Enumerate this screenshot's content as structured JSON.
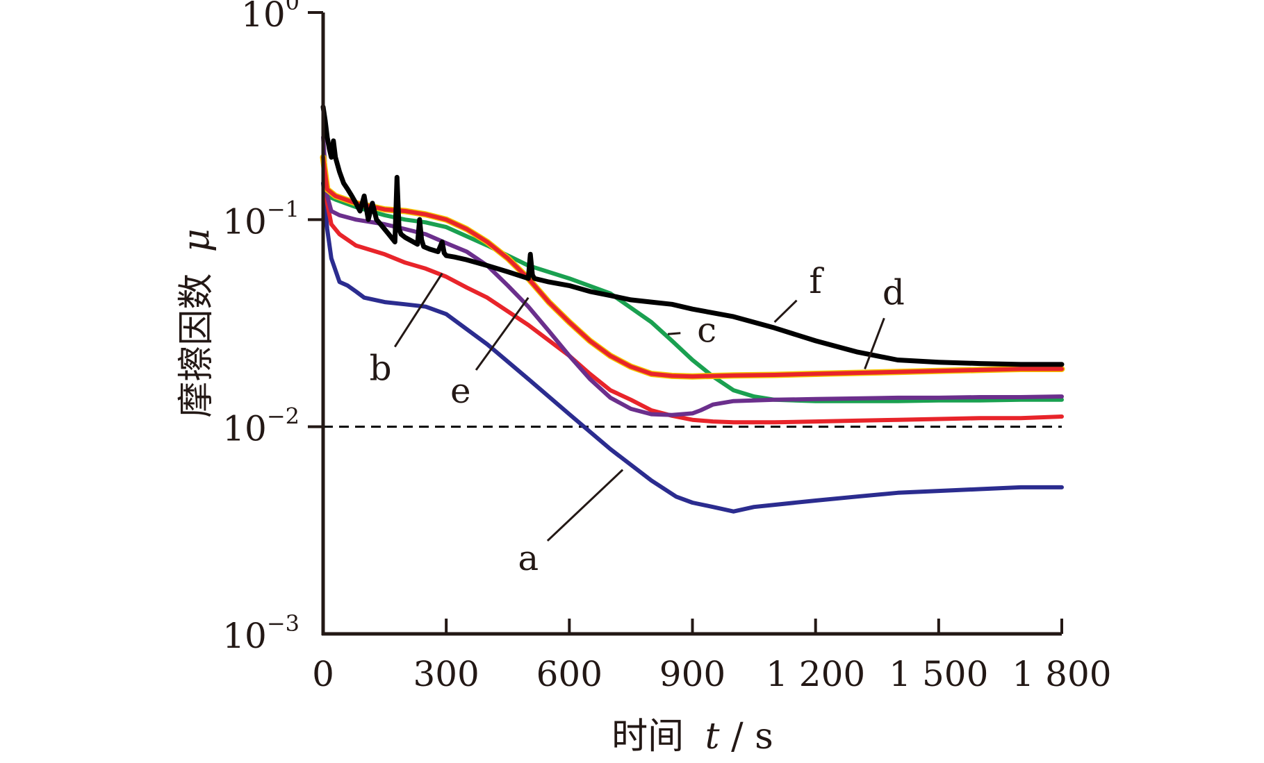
{
  "chart_data": {
    "type": "line",
    "title": "",
    "xlabel_text": "时间",
    "xlabel_symbol": "t",
    "xlabel_unit": "s",
    "ylabel_text": "摩擦因数",
    "ylabel_symbol": "μ",
    "xlim": [
      0,
      1800
    ],
    "ylim": [
      0.001,
      1
    ],
    "y_scale": "log",
    "grid": false,
    "x_ticks": [
      {
        "value": 0,
        "label": "0"
      },
      {
        "value": 300,
        "label": "300"
      },
      {
        "value": 600,
        "label": "600"
      },
      {
        "value": 900,
        "label": "900"
      },
      {
        "value": 1200,
        "label": "1 200"
      },
      {
        "value": 1500,
        "label": "1 500"
      },
      {
        "value": 1800,
        "label": "1 800"
      }
    ],
    "y_ticks": [
      {
        "value": 1,
        "base": "10",
        "exp": "0"
      },
      {
        "value": 0.1,
        "base": "10",
        "exp": "−1"
      },
      {
        "value": 0.01,
        "base": "10",
        "exp": "−2"
      },
      {
        "value": 0.001,
        "base": "10",
        "exp": "−3"
      }
    ],
    "reference_line": {
      "y": 0.01,
      "style": "dashed",
      "color": "#000000"
    },
    "series": [
      {
        "name": "a",
        "color": "#2b2c8f",
        "x": [
          0,
          10,
          20,
          40,
          60,
          80,
          100,
          150,
          200,
          250,
          300,
          400,
          500,
          600,
          700,
          800,
          860,
          900,
          950,
          1000,
          1050,
          1100,
          1200,
          1300,
          1400,
          1500,
          1600,
          1700,
          1800
        ],
        "y": [
          0.15,
          0.09,
          0.065,
          0.05,
          0.048,
          0.045,
          0.042,
          0.04,
          0.039,
          0.038,
          0.035,
          0.025,
          0.017,
          0.0115,
          0.0078,
          0.0055,
          0.0046,
          0.0043,
          0.0041,
          0.0039,
          0.0041,
          0.0042,
          0.0044,
          0.0046,
          0.0048,
          0.0049,
          0.005,
          0.0051,
          0.0051
        ]
      },
      {
        "name": "b",
        "color": "#e8242a",
        "x": [
          0,
          10,
          20,
          40,
          80,
          150,
          200,
          250,
          300,
          350,
          400,
          500,
          600,
          650,
          700,
          750,
          800,
          850,
          900,
          950,
          1000,
          1100,
          1200,
          1300,
          1400,
          1500,
          1600,
          1700,
          1800
        ],
        "y": [
          0.2,
          0.12,
          0.095,
          0.085,
          0.075,
          0.068,
          0.062,
          0.058,
          0.053,
          0.047,
          0.042,
          0.031,
          0.022,
          0.018,
          0.015,
          0.0135,
          0.012,
          0.0113,
          0.0108,
          0.0106,
          0.0105,
          0.0105,
          0.0106,
          0.0107,
          0.0108,
          0.0109,
          0.011,
          0.011,
          0.0112
        ]
      },
      {
        "name": "c",
        "color": "#1aa050",
        "x": [
          0,
          10,
          30,
          80,
          150,
          200,
          250,
          300,
          400,
          500,
          600,
          700,
          800,
          850,
          900,
          950,
          1000,
          1050,
          1100,
          1200,
          1300,
          1400,
          1500,
          1600,
          1700,
          1800
        ],
        "y": [
          0.15,
          0.13,
          0.125,
          0.115,
          0.105,
          0.1,
          0.097,
          0.092,
          0.075,
          0.06,
          0.052,
          0.044,
          0.032,
          0.026,
          0.021,
          0.0175,
          0.015,
          0.014,
          0.0135,
          0.0133,
          0.0133,
          0.0133,
          0.0134,
          0.0134,
          0.0135,
          0.0135
        ]
      },
      {
        "name": "d",
        "color": "#e8242a",
        "outline": "#f5c400",
        "x": [
          0,
          10,
          30,
          80,
          150,
          200,
          250,
          300,
          350,
          400,
          450,
          500,
          550,
          600,
          650,
          700,
          750,
          800,
          850,
          900,
          1000,
          1100,
          1200,
          1300,
          1400,
          1500,
          1600,
          1700,
          1800
        ],
        "y": [
          0.2,
          0.14,
          0.13,
          0.12,
          0.112,
          0.11,
          0.106,
          0.1,
          0.09,
          0.078,
          0.065,
          0.052,
          0.04,
          0.032,
          0.026,
          0.022,
          0.0195,
          0.018,
          0.0176,
          0.0175,
          0.0177,
          0.0178,
          0.018,
          0.0182,
          0.0184,
          0.0186,
          0.0188,
          0.019,
          0.019
        ]
      },
      {
        "name": "e",
        "color": "#6b2f8c",
        "x": [
          0,
          10,
          20,
          40,
          80,
          150,
          200,
          250,
          300,
          350,
          400,
          450,
          500,
          550,
          600,
          650,
          700,
          750,
          800,
          850,
          900,
          920,
          950,
          1000,
          1100,
          1200,
          1300,
          1400,
          1500,
          1600,
          1700,
          1800
        ],
        "y": [
          0.25,
          0.13,
          0.11,
          0.105,
          0.1,
          0.095,
          0.09,
          0.085,
          0.077,
          0.07,
          0.06,
          0.048,
          0.038,
          0.029,
          0.022,
          0.017,
          0.0138,
          0.0122,
          0.0115,
          0.0114,
          0.0116,
          0.012,
          0.0128,
          0.0133,
          0.0135,
          0.0136,
          0.0137,
          0.0138,
          0.0138,
          0.0139,
          0.0139,
          0.014
        ]
      },
      {
        "name": "f",
        "color": "#000000",
        "x": [
          0,
          5,
          10,
          15,
          20,
          25,
          30,
          40,
          50,
          60,
          70,
          80,
          90,
          100,
          110,
          120,
          130,
          140,
          160,
          175,
          180,
          185,
          190,
          200,
          220,
          230,
          235,
          240,
          245,
          260,
          280,
          290,
          295,
          300,
          320,
          350,
          400,
          450,
          500,
          505,
          510,
          515,
          550,
          600,
          650,
          700,
          750,
          800,
          850,
          900,
          1000,
          1100,
          1200,
          1300,
          1400,
          1500,
          1600,
          1700,
          1800
        ],
        "y": [
          0.35,
          0.3,
          0.25,
          0.22,
          0.2,
          0.24,
          0.2,
          0.17,
          0.15,
          0.14,
          0.13,
          0.12,
          0.11,
          0.13,
          0.1,
          0.12,
          0.1,
          0.095,
          0.085,
          0.078,
          0.16,
          0.09,
          0.085,
          0.082,
          0.078,
          0.076,
          0.1,
          0.08,
          0.074,
          0.072,
          0.07,
          0.078,
          0.069,
          0.067,
          0.066,
          0.064,
          0.06,
          0.056,
          0.052,
          0.068,
          0.054,
          0.052,
          0.05,
          0.048,
          0.045,
          0.043,
          0.041,
          0.04,
          0.039,
          0.037,
          0.034,
          0.03,
          0.026,
          0.023,
          0.021,
          0.0205,
          0.0202,
          0.02,
          0.02
        ]
      }
    ],
    "annotations": [
      {
        "label": "a",
        "point": [
          730,
          0.0062
        ],
        "text_at": [
          500,
          0.0023
        ]
      },
      {
        "label": "b",
        "point": [
          290,
          0.055
        ],
        "text_at": [
          140,
          0.019
        ]
      },
      {
        "label": "c",
        "point": [
          840,
          0.028
        ],
        "text_at": [
          935,
          0.029
        ]
      },
      {
        "label": "d",
        "point": [
          1320,
          0.019
        ],
        "text_at": [
          1390,
          0.044
        ]
      },
      {
        "label": "e",
        "point": [
          500,
          0.042
        ],
        "text_at": [
          335,
          0.0148
        ]
      },
      {
        "label": "f",
        "point": [
          1100,
          0.032
        ],
        "text_at": [
          1200,
          0.05
        ]
      }
    ]
  }
}
